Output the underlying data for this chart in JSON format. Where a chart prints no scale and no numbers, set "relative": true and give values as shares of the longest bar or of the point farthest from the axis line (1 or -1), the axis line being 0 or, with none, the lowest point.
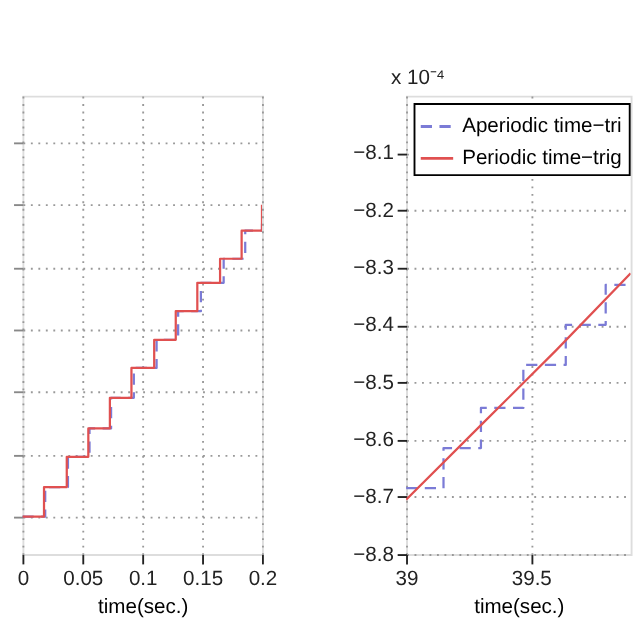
{
  "chart_data": [
    {
      "type": "step",
      "relative": true,
      "xlabel": "time(sec.)",
      "xlim": [
        0,
        0.2
      ],
      "xticks": [
        0,
        0.05,
        0.1,
        0.15,
        0.2
      ],
      "grid": true,
      "legend": false,
      "tick_labels": "x",
      "line_style": "solid",
      "marker": "none",
      "series": [
        {
          "color": "#7b7bd6",
          "line_style": "dashed",
          "x": [
            0,
            0.019,
            0.038,
            0.056,
            0.074,
            0.093,
            0.112,
            0.13,
            0.149,
            0.168,
            0.186,
            0.2
          ],
          "values": [
            0,
            0.095,
            0.192,
            0.283,
            0.381,
            0.477,
            0.567,
            0.659,
            0.75,
            0.827,
            0.917,
            0.94
          ]
        },
        {
          "color": "#e05050",
          "x": [
            0,
            0.018,
            0.037,
            0.055,
            0.073,
            0.091,
            0.11,
            0.128,
            0.146,
            0.165,
            0.183,
            0.2
          ],
          "values": [
            0,
            0.095,
            0.192,
            0.283,
            0.381,
            0.477,
            0.567,
            0.659,
            0.75,
            0.827,
            0.917,
            1.0
          ]
        }
      ]
    },
    {
      "type": "line",
      "xlabel": "time(sec.)",
      "xlim": [
        39,
        39.9
      ],
      "xticks": [
        39,
        39.5
      ],
      "ylim": [
        -8.8,
        -8.0
      ],
      "yticks": [
        -8.8,
        -8.7,
        -8.6,
        -8.5,
        -8.4,
        -8.3,
        -8.2,
        -8.1
      ],
      "grid": true,
      "legend": "top left",
      "marker": "none",
      "annotations": [
        "x 10⁻⁴"
      ],
      "series": [
        {
          "name": "Aperiodic time−tri",
          "type": "step",
          "color": "#7b7bd6",
          "line_style": "dashed",
          "x": [
            39,
            39.15,
            39.3,
            39.47,
            39.64,
            39.8,
            39.9
          ],
          "values": [
            -8.685,
            -8.615,
            -8.545,
            -8.47,
            -8.4,
            -8.33,
            -8.33
          ]
        },
        {
          "name": "Periodic time−trig",
          "type": "line",
          "color": "#e05050",
          "line_style": "solid",
          "x": [
            39,
            39.3,
            39.6,
            39.9
          ],
          "values": [
            -8.705,
            -8.575,
            -8.445,
            -8.31
          ]
        }
      ]
    }
  ]
}
